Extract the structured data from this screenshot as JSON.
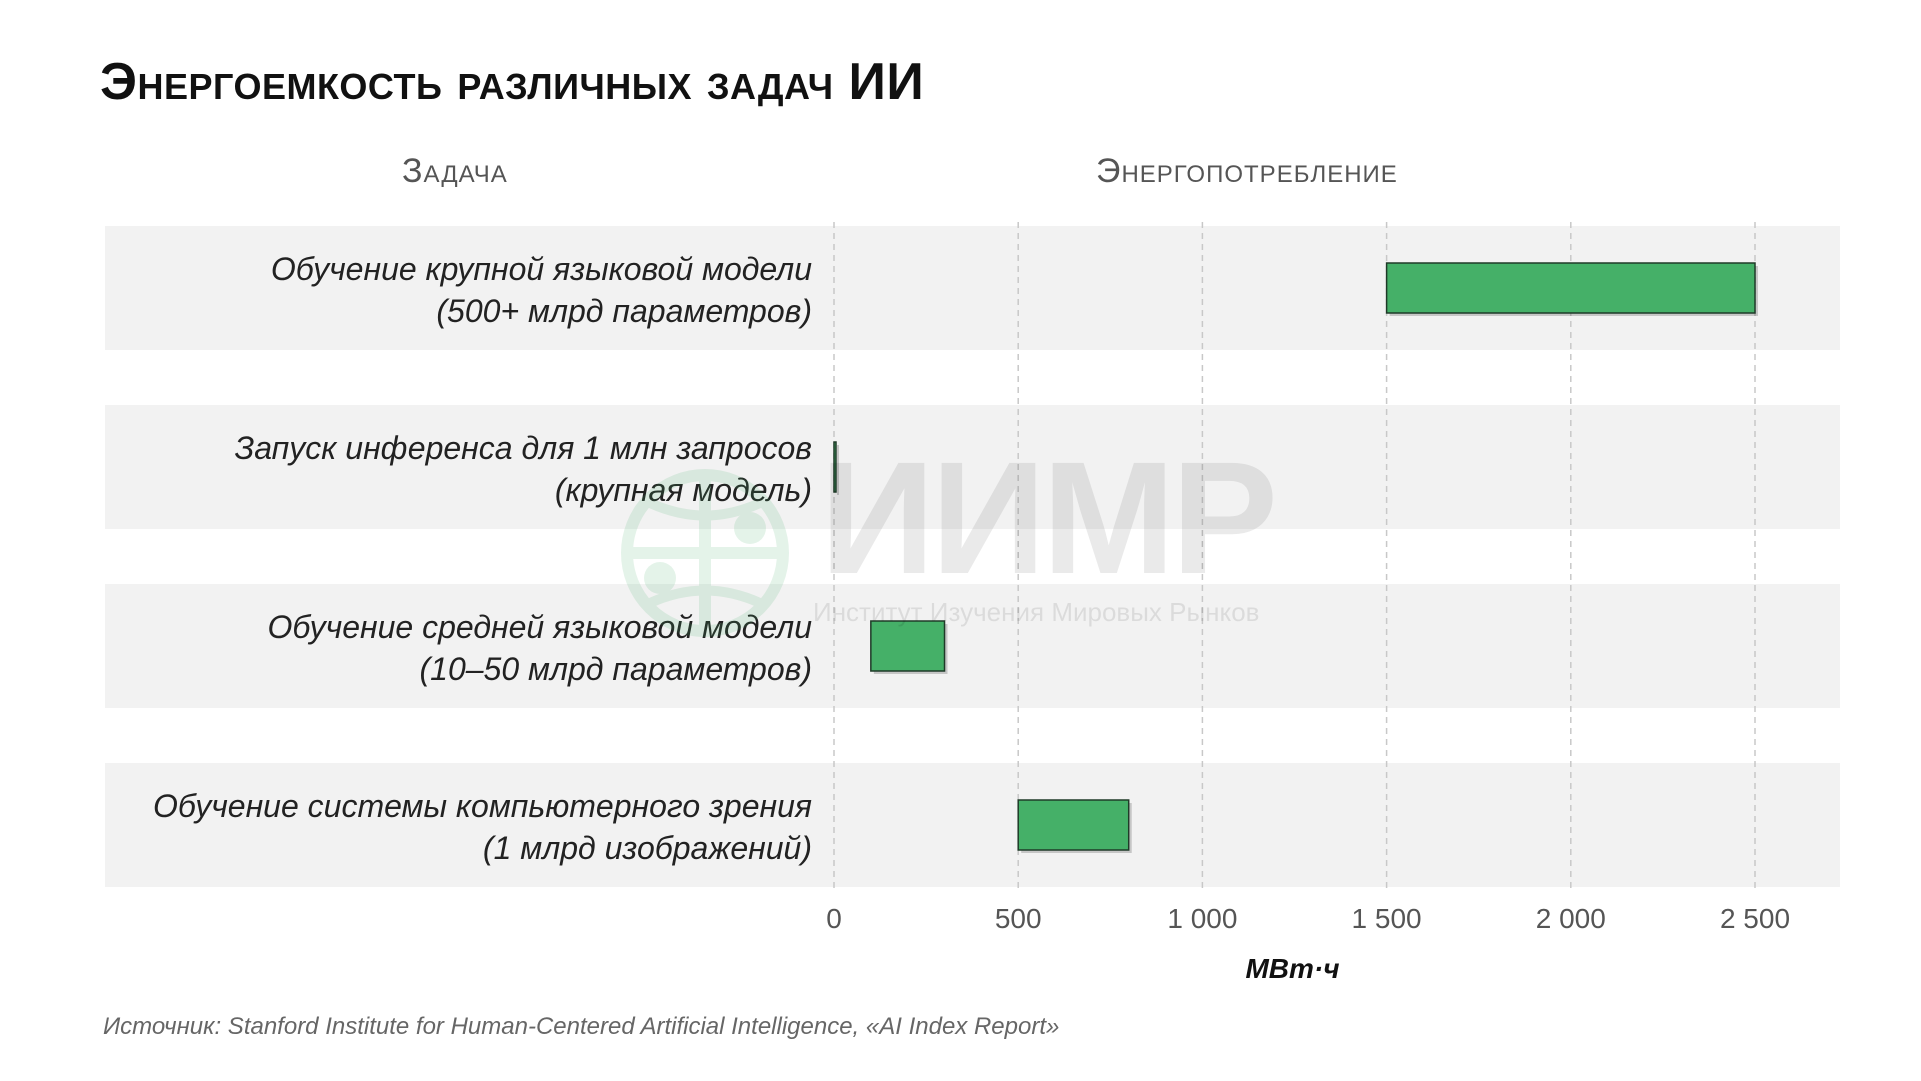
{
  "title": "Энергоемкость различных задач ИИ",
  "columns": {
    "task": "Задача",
    "energy": "Энергопотребление"
  },
  "watermark": {
    "main": "ИИМР",
    "sub": "Институт Изучения Мировых Рынков"
  },
  "source": "Источник: Stanford Institute for Human-Centered Artificial Intelligence, «AI Index Report»",
  "colors": {
    "bar": "#45b068",
    "bar_border": "#1f3a28",
    "band": "#f2f2f2",
    "grid": "#c8c8c8",
    "watermark_globe": "#45b068"
  },
  "chart_data": {
    "type": "bar",
    "orientation": "horizontal",
    "subtype": "floating-range",
    "xlabel": "МВт·ч",
    "xlim": [
      0,
      2500
    ],
    "xticks": [
      0,
      500,
      1000,
      1500,
      2000,
      2500
    ],
    "xtick_labels": [
      "0",
      "500",
      "1 000",
      "1 500",
      "2 000",
      "2 500"
    ],
    "grid": "vertical-dashed",
    "categories": [
      [
        "Обучение крупной языковой модели",
        "(500+ млрд параметров)"
      ],
      [
        "Запуск инференса для 1 млн запросов",
        "(крупная модель)"
      ],
      [
        "Обучение средней языковой модели",
        "(10–50 млрд параметров)"
      ],
      [
        "Обучение системы компьютерного зрения",
        "(1 млрд изображений)"
      ]
    ],
    "ranges": [
      [
        1500,
        2500
      ],
      [
        0,
        5
      ],
      [
        100,
        300
      ],
      [
        500,
        800
      ]
    ]
  }
}
